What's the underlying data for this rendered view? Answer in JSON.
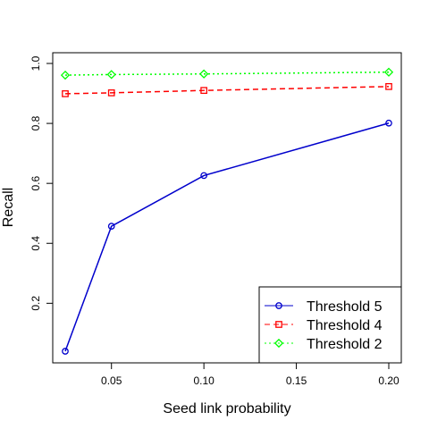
{
  "chart_data": {
    "type": "line",
    "title": "",
    "xlabel": "Seed link probability",
    "ylabel": "Recall",
    "xlim": [
      0.025,
      0.2
    ],
    "ylim": [
      0.04,
      1.0
    ],
    "x_ticks": [
      "0.05",
      "0.10",
      "0.15",
      "0.20"
    ],
    "y_ticks": [
      "0.2",
      "0.4",
      "0.6",
      "0.8",
      "1.0"
    ],
    "grid": false,
    "legend_position": "bottom-right",
    "x": [
      0.025,
      0.05,
      0.1,
      0.2
    ],
    "series": [
      {
        "name": "Threshold 5",
        "values": [
          0.04,
          0.457,
          0.626,
          0.801
        ],
        "color": "#0000cc",
        "line_style": "solid",
        "marker": "circle"
      },
      {
        "name": "Threshold 4",
        "values": [
          0.899,
          0.902,
          0.91,
          0.923
        ],
        "color": "#ff0000",
        "line_style": "dashed",
        "marker": "square"
      },
      {
        "name": "Threshold 2",
        "values": [
          0.961,
          0.963,
          0.965,
          0.971
        ],
        "color": "#00ff00",
        "line_style": "dotted",
        "marker": "diamond"
      }
    ]
  }
}
